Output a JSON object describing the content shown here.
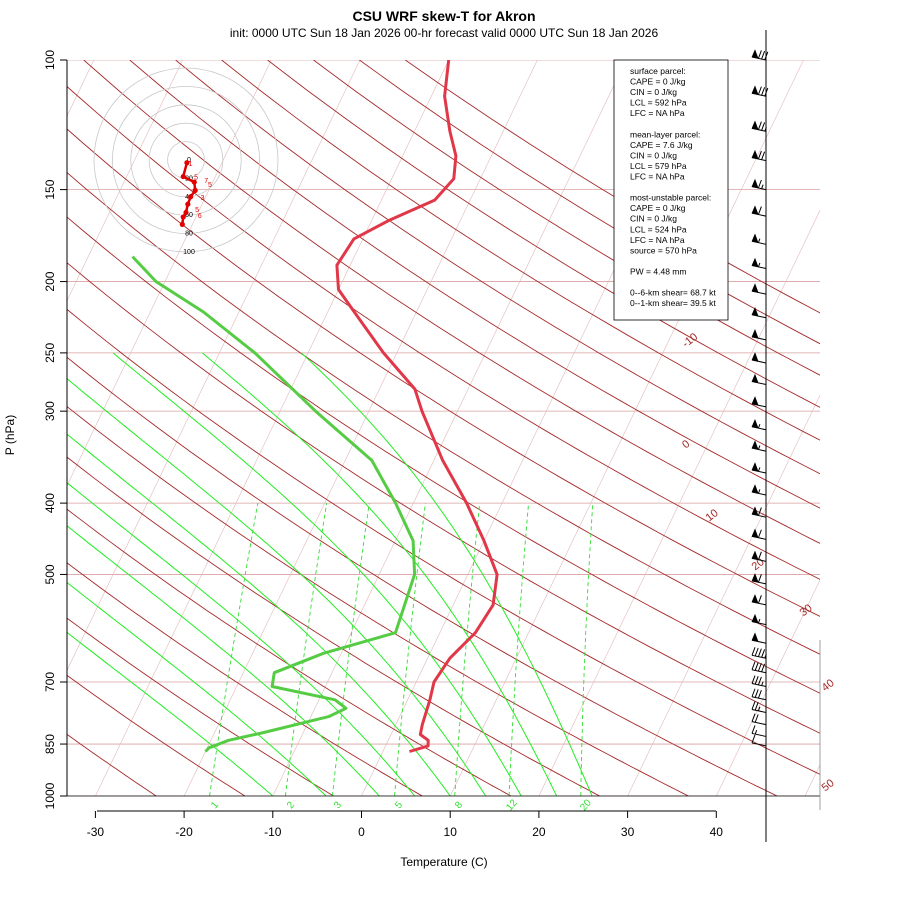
{
  "chart_data": {
    "type": "line",
    "title": "CSU WRF skew-T for Akron",
    "subtitle": "init: 0000 UTC Sun 18 Jan 2026     00-hr forecast valid 0000 UTC Sun 18 Jan 2026",
    "xlabel": "Temperature (C)",
    "ylabel": "P (hPa)",
    "xlim": [
      -33,
      51
    ],
    "ylim": [
      1000,
      100
    ],
    "x_ticks": [
      "-30",
      "-20",
      "-10",
      "0",
      "10",
      "20",
      "30",
      "40"
    ],
    "x_tick_values": [
      -30,
      -20,
      -10,
      0,
      10,
      20,
      30,
      40
    ],
    "y_ticks": [
      "100",
      "150",
      "200",
      "250",
      "300",
      "400",
      "500",
      "700",
      "850",
      "1000"
    ],
    "y_tick_values": [
      100,
      150,
      200,
      250,
      300,
      400,
      500,
      700,
      850,
      1000
    ],
    "isotherm_labels": [
      {
        "text": "-10",
        "t": -10,
        "p": 300
      },
      {
        "text": "0",
        "t": 0,
        "p": 355
      },
      {
        "text": "10",
        "t": 10,
        "p": 435
      },
      {
        "text": "20",
        "t": 20,
        "p": 520
      },
      {
        "text": "30",
        "t": 30,
        "p": 600
      },
      {
        "text": "40",
        "t": 40,
        "p": 700
      },
      {
        "text": "50",
        "t": 50,
        "p": 840
      }
    ],
    "mixing_ratio_labels": [
      "1",
      "2",
      "3",
      "5",
      "8",
      "12",
      "20"
    ],
    "series": [
      {
        "name": "temperature",
        "color": "#e03848",
        "p": [
          870,
          860,
          855,
          840,
          825,
          800,
          740,
          700,
          650,
          600,
          550,
          500,
          450,
          400,
          350,
          300,
          280,
          250,
          220,
          205,
          190,
          175,
          165,
          155,
          145,
          135,
          125,
          112,
          100
        ],
        "t": [
          3.0,
          4.2,
          4.8,
          4.5,
          3.3,
          3.0,
          2.5,
          2.0,
          2.5,
          4.0,
          4.5,
          3.3,
          0.0,
          -4.0,
          -9.0,
          -14.0,
          -16.0,
          -21.5,
          -27.0,
          -30.0,
          -31.5,
          -31.0,
          -28.0,
          -24.0,
          -23.0,
          -24.0,
          -26.0,
          -28.5,
          -30.0
        ]
      },
      {
        "name": "dewpoint",
        "color": "#55cc44",
        "p": [
          870,
          860,
          840,
          820,
          780,
          760,
          740,
          710,
          680,
          640,
          600,
          500,
          450,
          400,
          350,
          300,
          250,
          220,
          200,
          185
        ],
        "td": [
          -20.0,
          -19.8,
          -18.0,
          -14.5,
          -8.0,
          -6.5,
          -8.2,
          -16.0,
          -16.5,
          -12.0,
          -5.0,
          -6.0,
          -8.0,
          -12.0,
          -17.0,
          -26.0,
          -36.0,
          -44.0,
          -51.0,
          -55.0
        ]
      }
    ],
    "wind_barbs": [
      {
        "p": 100,
        "speed": 80
      },
      {
        "p": 112,
        "speed": 80
      },
      {
        "p": 125,
        "speed": 75
      },
      {
        "p": 137,
        "speed": 70
      },
      {
        "p": 150,
        "speed": 65
      },
      {
        "p": 163,
        "speed": 60
      },
      {
        "p": 178,
        "speed": 55
      },
      {
        "p": 192,
        "speed": 55
      },
      {
        "p": 208,
        "speed": 50
      },
      {
        "p": 224,
        "speed": 50
      },
      {
        "p": 240,
        "speed": 50
      },
      {
        "p": 258,
        "speed": 50
      },
      {
        "p": 276,
        "speed": 50
      },
      {
        "p": 296,
        "speed": 50
      },
      {
        "p": 318,
        "speed": 55
      },
      {
        "p": 340,
        "speed": 55
      },
      {
        "p": 364,
        "speed": 55
      },
      {
        "p": 390,
        "speed": 55
      },
      {
        "p": 418,
        "speed": 60
      },
      {
        "p": 448,
        "speed": 60
      },
      {
        "p": 480,
        "speed": 60
      },
      {
        "p": 515,
        "speed": 60
      },
      {
        "p": 550,
        "speed": 60
      },
      {
        "p": 585,
        "speed": 55
      },
      {
        "p": 620,
        "speed": 50
      },
      {
        "p": 650,
        "speed": 45
      },
      {
        "p": 680,
        "speed": 40
      },
      {
        "p": 710,
        "speed": 35
      },
      {
        "p": 740,
        "speed": 30
      },
      {
        "p": 770,
        "speed": 25
      },
      {
        "p": 800,
        "speed": 20
      },
      {
        "p": 830,
        "speed": 15
      },
      {
        "p": 855,
        "speed": 10
      }
    ],
    "hodograph": {
      "ring_labels": [
        "0",
        "20",
        "40",
        "60",
        "80",
        "100"
      ],
      "ring_values": [
        0,
        20,
        40,
        60,
        80,
        100
      ],
      "points": [
        [
          1,
          3
        ],
        [
          -3,
          18
        ],
        [
          9,
          24
        ],
        [
          10,
          33
        ],
        [
          5,
          40
        ],
        [
          2,
          48
        ],
        [
          0,
          57
        ],
        [
          -3,
          62
        ],
        [
          -4,
          70
        ]
      ],
      "point_labels": [
        {
          "text": "1",
          "u": 5,
          "v": 3
        },
        {
          "text": "5",
          "u": 11,
          "v": 18
        },
        {
          "text": "7",
          "u": 22,
          "v": 22
        },
        {
          "text": "5",
          "u": 26,
          "v": 26
        },
        {
          "text": "3",
          "u": 18,
          "v": 40
        },
        {
          "text": "5",
          "u": 12,
          "v": 53
        },
        {
          "text": "6",
          "u": 15,
          "v": 60
        }
      ]
    }
  },
  "parcel_info": {
    "lines": [
      "surface parcel:",
      "CAPE = 0 J/kg",
      "CIN = 0 J/kg",
      "LCL = 592 hPa",
      "LFC = NA hPa",
      "",
      "mean-layer parcel:",
      "CAPE = 7.6 J/kg",
      "CIN = 0 J/kg",
      "LCL = 579 hPa",
      "LFC = NA hPa",
      "",
      "most-unstable parcel:",
      "CAPE = 0 J/kg",
      "CIN = 0 J/kg",
      "LCL = 524 hPa",
      "LFC = NA hPa",
      "source = 570 hPa",
      "",
      "PW =  4.48 mm",
      "",
      "0--6-km shear= 68.7 kt",
      "0--1-km shear= 39.5 kt"
    ]
  },
  "colors": {
    "isotherm": "#a52a2a",
    "dry_adiabat": "#a52a2a",
    "moist_adiabat": "#22ee22",
    "mixing_ratio": "#33dd33",
    "grid": "#d8a8a8",
    "temperature": "#e03848",
    "dewpoint": "#55cc44",
    "hodograph": "#e00000"
  }
}
